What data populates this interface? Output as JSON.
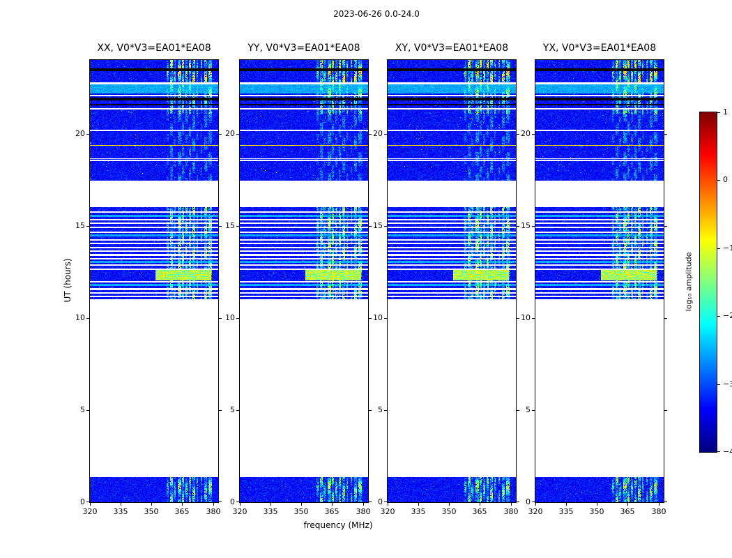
{
  "figure": {
    "title": "2023-06-26 0.0-24.0"
  },
  "chart_data": {
    "type": "heatmap",
    "title": "2023-06-26 0.0-24.0",
    "xlabel": "frequency (MHz)",
    "ylabel": "UT (hours)",
    "x_range": [
      320,
      382.5
    ],
    "y_range": [
      0,
      24
    ],
    "x_ticks": [
      320,
      335,
      350,
      365,
      380
    ],
    "y_ticks": [
      0,
      5,
      10,
      15,
      20
    ],
    "panels": [
      {
        "pol": "XX",
        "title": "XX, V0*V3=EA01*EA08"
      },
      {
        "pol": "YY",
        "title": "YY, V0*V3=EA01*EA08"
      },
      {
        "pol": "XY",
        "title": "XY, V0*V3=EA01*EA08"
      },
      {
        "pol": "YX",
        "title": "YX, V0*V3=EA01*EA08"
      }
    ],
    "colorbar": {
      "label": "log₁₀ amplitude",
      "colormap": "jet",
      "vmin": -4,
      "vmax": 1,
      "ticks": [
        {
          "v": 1,
          "label": "1"
        },
        {
          "v": 0,
          "label": "0"
        },
        {
          "v": -1,
          "label": "−1"
        },
        {
          "v": -2,
          "label": "−2"
        },
        {
          "v": -3,
          "label": "−3"
        },
        {
          "v": -4,
          "label": "−4"
        }
      ]
    },
    "bands": [
      {
        "t0": 0.0,
        "t1": 1.35,
        "kind": "noise",
        "rfi": 1.0,
        "stripes": []
      },
      {
        "t0": 1.35,
        "t1": 11.0,
        "kind": "gap"
      },
      {
        "t0": 11.0,
        "t1": 16.0,
        "kind": "noise",
        "rfi": 1.0,
        "blob": {
          "t0": 12.05,
          "t1": 12.6,
          "f0": 352,
          "f1": 379
        },
        "stripes": [
          {
            "t0": 11.12,
            "t1": 11.2,
            "c": "white"
          },
          {
            "t0": 11.32,
            "t1": 11.4,
            "c": "white"
          },
          {
            "t0": 11.52,
            "t1": 11.62,
            "c": "white"
          },
          {
            "t0": 11.75,
            "t1": 11.85,
            "c": "cyan"
          },
          {
            "t0": 11.93,
            "t1": 12.0,
            "c": "white"
          },
          {
            "t0": 12.62,
            "t1": 12.7,
            "c": "white"
          },
          {
            "t0": 12.82,
            "t1": 12.9,
            "c": "white"
          },
          {
            "t0": 13.0,
            "t1": 13.1,
            "c": "cyan"
          },
          {
            "t0": 13.18,
            "t1": 13.26,
            "c": "white"
          },
          {
            "t0": 13.38,
            "t1": 13.46,
            "c": "white"
          },
          {
            "t0": 13.58,
            "t1": 13.66,
            "c": "white"
          },
          {
            "t0": 13.79,
            "t1": 13.87,
            "c": "white"
          },
          {
            "t0": 14.0,
            "t1": 14.08,
            "c": "white"
          },
          {
            "t0": 14.2,
            "t1": 14.28,
            "c": "white"
          },
          {
            "t0": 14.42,
            "t1": 14.52,
            "c": "cyan"
          },
          {
            "t0": 14.62,
            "t1": 14.7,
            "c": "white"
          },
          {
            "t0": 14.86,
            "t1": 14.94,
            "c": "white"
          },
          {
            "t0": 15.1,
            "t1": 15.18,
            "c": "white"
          },
          {
            "t0": 15.3,
            "t1": 15.38,
            "c": "white"
          },
          {
            "t0": 15.5,
            "t1": 15.6,
            "c": "cyan"
          },
          {
            "t0": 15.7,
            "t1": 15.78,
            "c": "white"
          }
        ]
      },
      {
        "t0": 16.0,
        "t1": 17.45,
        "kind": "gap"
      },
      {
        "t0": 17.45,
        "t1": 21.1,
        "kind": "noise",
        "rfi": 0.35,
        "hotdots": true,
        "stripes": [
          {
            "t0": 18.52,
            "t1": 18.57,
            "c": "white"
          },
          {
            "t0": 18.63,
            "t1": 18.68,
            "c": "white"
          },
          {
            "t0": 19.33,
            "t1": 19.38,
            "c": "hot"
          },
          {
            "t0": 20.15,
            "t1": 20.2,
            "c": "white"
          }
        ]
      },
      {
        "t0": 21.1,
        "t1": 22.78,
        "kind": "noise",
        "rfi": 0.9,
        "stripes": [
          {
            "t0": 21.3,
            "t1": 21.38,
            "c": "white"
          },
          {
            "t0": 21.55,
            "t1": 21.62,
            "c": "black"
          },
          {
            "t0": 21.82,
            "t1": 21.95,
            "c": "black"
          },
          {
            "t0": 22.05,
            "t1": 22.12,
            "c": "white"
          },
          {
            "t0": 22.2,
            "t1": 22.68,
            "c": "cyan"
          },
          {
            "t0": 22.68,
            "t1": 22.78,
            "c": "white"
          }
        ]
      },
      {
        "t0": 22.78,
        "t1": 24.0,
        "kind": "noise",
        "rfi": 1.3,
        "stripes": [
          {
            "t0": 23.38,
            "t1": 23.55,
            "c": "black"
          }
        ]
      }
    ],
    "rfi_substripes": [
      {
        "f": 357.8,
        "w": 1.0,
        "a": 0.55
      },
      {
        "f": 359.6,
        "w": 1.4,
        "a": 0.8
      },
      {
        "f": 361.3,
        "w": 0.8,
        "a": 0.5
      },
      {
        "f": 363.6,
        "w": 1.6,
        "a": 0.95
      },
      {
        "f": 365.4,
        "w": 1.2,
        "a": 0.85
      },
      {
        "f": 367.0,
        "w": 1.0,
        "a": 0.7
      },
      {
        "f": 368.8,
        "w": 1.2,
        "a": 0.8
      },
      {
        "f": 370.6,
        "w": 1.4,
        "a": 0.9
      },
      {
        "f": 372.3,
        "w": 0.9,
        "a": 0.6
      },
      {
        "f": 374.3,
        "w": 0.8,
        "a": 0.5
      },
      {
        "f": 376.4,
        "w": 1.3,
        "a": 0.85
      },
      {
        "f": 378.6,
        "w": 1.5,
        "a": 0.9
      }
    ]
  }
}
